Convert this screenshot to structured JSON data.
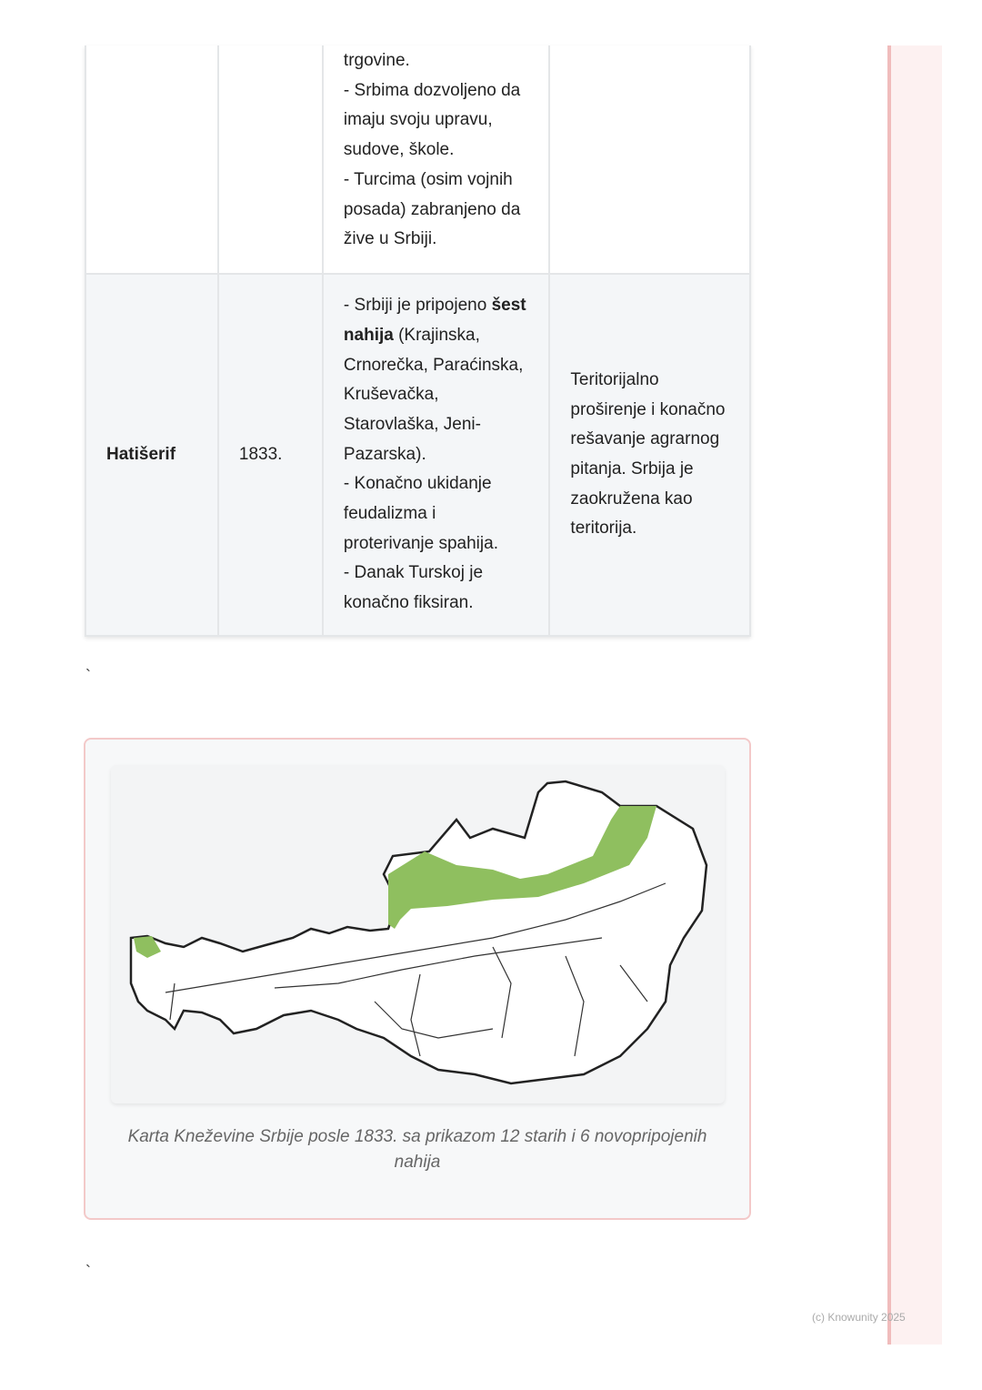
{
  "table": {
    "rows": [
      {
        "name": "",
        "year": "",
        "content": [
          "trgovine.",
          "- Srbima dozvoljeno da imaju svoju upravu, sudove, škole.",
          "- Turcima (osim vojnih posada) zabranjeno da žive u Srbiji."
        ],
        "significance": ""
      },
      {
        "name": "Hatišerif",
        "year": "1833.",
        "content_pre": "- Srbiji je pripojeno ",
        "content_bold": "šest nahija",
        "content_post": " (Krajinska, Crnorečka, Paraćinska, Kruševačka, Starovlaška, Jeni-Pazarska).",
        "content_more": [
          "- Konačno ukidanje feudalizma i proterivanje spahija.",
          "- Danak Turskoj je konačno fiksiran."
        ],
        "significance": "Teritorijalno proširenje i konačno rešavanje agrarnog pitanja. Srbija je zaokružena kao teritorija."
      }
    ]
  },
  "separator": "`",
  "figure": {
    "caption": "Karta Kneževine Srbije posle 1833. sa prikazom 12 starih i 6 novopripojenih nahija",
    "highlight_color": "#8fbf5f"
  },
  "footer": "(c) Knowunity 2025"
}
